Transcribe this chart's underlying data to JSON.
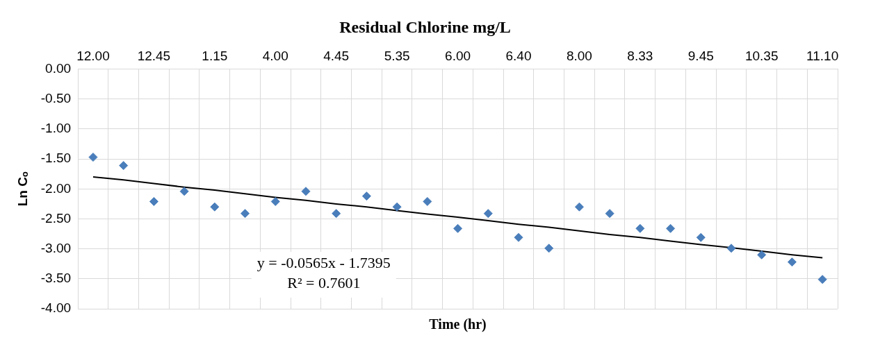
{
  "chart_data": {
    "type": "scatter",
    "title": "Residual Chlorine mg/L",
    "xlabel": "Time (hr)",
    "ylabel": "Ln Cₒ",
    "categories": [
      "12.00",
      null,
      "12.45",
      null,
      "1.15",
      null,
      "4.00",
      null,
      "4.45",
      null,
      "5.35",
      null,
      "6.00",
      null,
      "6.40",
      null,
      "8.00",
      null,
      "8.33",
      null,
      "9.45",
      null,
      "10.35",
      null,
      "11.10"
    ],
    "series": [
      {
        "color": "#4a7ebb",
        "marker": "diamond",
        "values": [
          -1.47,
          -1.61,
          -2.21,
          -2.04,
          -2.3,
          -2.41,
          -2.21,
          -2.04,
          -2.41,
          -2.12,
          -2.3,
          -2.21,
          -2.66,
          -2.41,
          -2.81,
          -2.99,
          -2.3,
          -2.41,
          -2.66,
          -2.66,
          -2.81,
          -2.99,
          -3.1,
          -3.22,
          -3.51
        ]
      },
      {
        "type": "line",
        "color": "#000000",
        "marker": "none",
        "line_style": "solid",
        "values": [
          -1.8,
          -1.85,
          -1.91,
          -1.97,
          -2.02,
          -2.08,
          -2.14,
          -2.19,
          -2.25,
          -2.3,
          -2.36,
          -2.42,
          -2.47,
          -2.53,
          -2.59,
          -2.64,
          -2.7,
          -2.76,
          -2.81,
          -2.87,
          -2.93,
          -2.98,
          -3.04,
          -3.1,
          -3.15
        ]
      }
    ],
    "ylim": [
      -4,
      0
    ],
    "yticks": [
      {
        "value": 0,
        "label": "0.00"
      },
      {
        "value": -0.5,
        "label": "-0.50"
      },
      {
        "value": -1,
        "label": "-1.00"
      },
      {
        "value": -1.5,
        "label": "-1.50"
      },
      {
        "value": -2,
        "label": "-2.00"
      },
      {
        "value": -2.5,
        "label": "-2.50"
      },
      {
        "value": -3,
        "label": "-3.00"
      },
      {
        "value": -3.5,
        "label": "-3.50"
      },
      {
        "value": -4,
        "label": "-4.00"
      }
    ],
    "grid": true,
    "legend": false,
    "annotations": [
      "y = -0.0565x - 1.7395",
      "R² = 0.7601"
    ]
  }
}
